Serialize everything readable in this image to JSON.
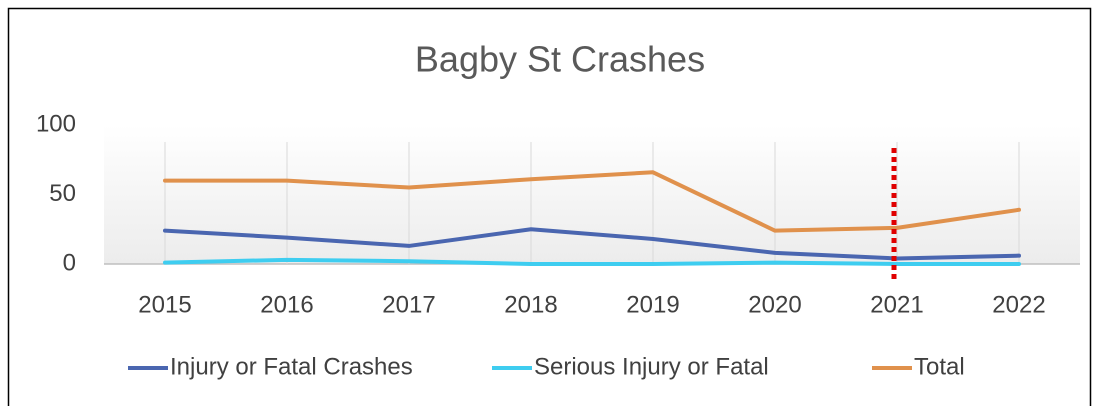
{
  "chart_data": {
    "type": "line",
    "title": "Bagby St Crashes",
    "categories": [
      "2015",
      "2016",
      "2017",
      "2018",
      "2019",
      "2020",
      "2021",
      "2022"
    ],
    "series": [
      {
        "name": "Injury or Fatal Crashes",
        "color": "#4a66b0",
        "values": [
          24,
          19,
          13,
          25,
          18,
          8,
          4,
          6
        ]
      },
      {
        "name": "Serious Injury or Fatal",
        "color": "#3ecdf0",
        "values": [
          1,
          3,
          2,
          0,
          0,
          1,
          0,
          0
        ]
      },
      {
        "name": "Total",
        "color": "#e0914c",
        "values": [
          60,
          60,
          55,
          61,
          66,
          24,
          26,
          39
        ]
      }
    ],
    "ylim": [
      0,
      100
    ],
    "yticks": [
      0,
      50,
      100
    ],
    "grid": true,
    "legend": "bottom"
  }
}
